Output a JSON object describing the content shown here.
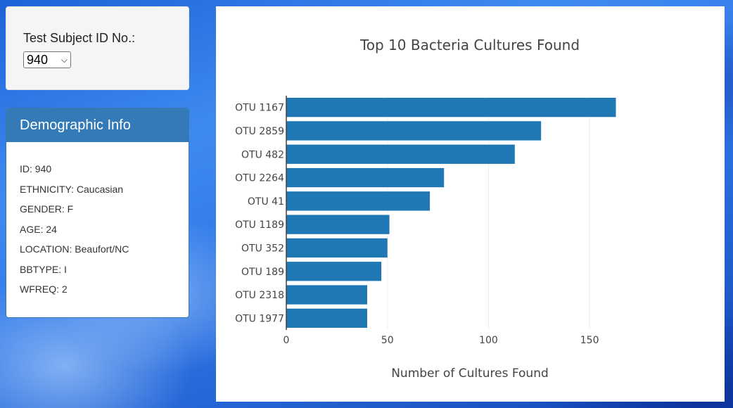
{
  "selector": {
    "label": "Test Subject ID No.:",
    "selected": "940"
  },
  "demographics": {
    "heading": "Demographic Info",
    "rows": [
      "ID: 940",
      "ETHNICITY: Caucasian",
      "GENDER: F",
      "AGE: 24",
      "LOCATION: Beaufort/NC",
      "BBTYPE: I",
      "WFREQ: 2"
    ]
  },
  "colors": {
    "bar": "#1f77b4",
    "panel_heading": "#337ab7"
  },
  "chart_data": {
    "type": "bar",
    "orientation": "horizontal",
    "title": "Top 10 Bacteria Cultures Found",
    "xlabel": "Number of Cultures Found",
    "ylabel": "",
    "categories": [
      "OTU 1167",
      "OTU 2859",
      "OTU 482",
      "OTU 2264",
      "OTU 41",
      "OTU 1189",
      "OTU 352",
      "OTU 189",
      "OTU 2318",
      "OTU 1977"
    ],
    "values": [
      163,
      126,
      113,
      78,
      71,
      51,
      50,
      47,
      40,
      40
    ],
    "xlim": [
      0,
      175
    ],
    "xticks": [
      0,
      50,
      100,
      150
    ],
    "grid": true,
    "legend": "none"
  }
}
